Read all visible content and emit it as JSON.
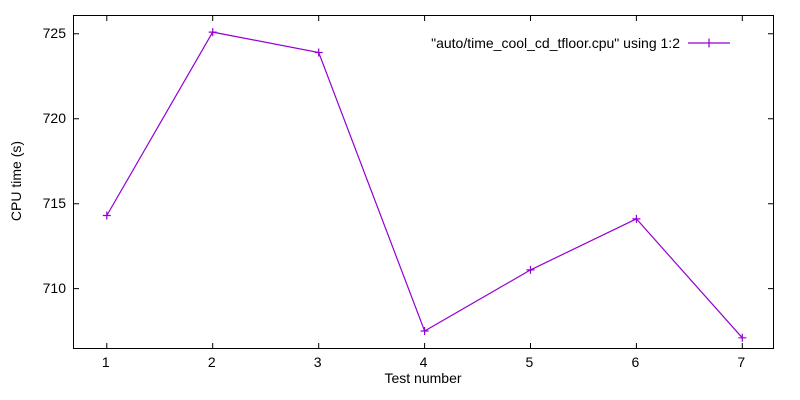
{
  "figure": {
    "background": "#ffffff",
    "axis_color": "#000000",
    "text_color": "#000000"
  },
  "chart_data": {
    "type": "line",
    "title": "",
    "xlabel": "Test number",
    "ylabel": "CPU time (s)",
    "legend": {
      "label": "\"auto/time_cool_cd_tfloor.cpu\" using 1:2",
      "position": "top-right",
      "marker": "plus"
    },
    "x": [
      1,
      2,
      3,
      4,
      5,
      6,
      7
    ],
    "y": [
      714.3,
      725.1,
      723.9,
      707.5,
      711.1,
      714.1,
      707.1
    ],
    "xticks": [
      1,
      2,
      3,
      4,
      5,
      6,
      7
    ],
    "yticks": [
      710,
      715,
      720,
      725
    ],
    "xlim": [
      0.69,
      7.29
    ],
    "ylim": [
      706.5,
      726.05
    ],
    "grid": false,
    "marker": "plus",
    "marker_size": 8,
    "line_color": "#9400d3",
    "line_width": 1.2
  }
}
